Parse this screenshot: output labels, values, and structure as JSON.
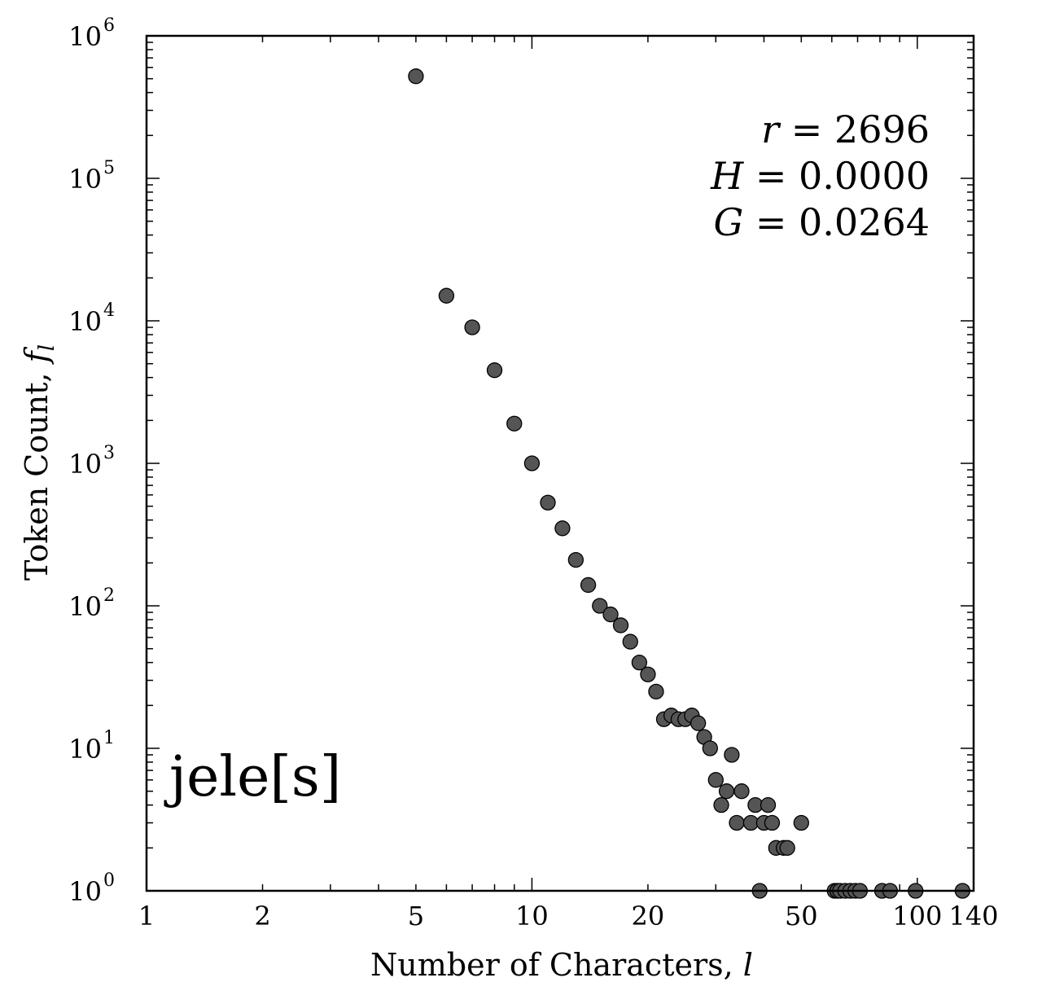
{
  "chart_data": {
    "type": "scatter",
    "xlabel": "Number of Characters,",
    "xlabel_var": "l",
    "ylabel": "Token Count,",
    "ylabel_var": "f",
    "ylabel_var_sub": "l",
    "x_scale": "log",
    "y_scale": "log",
    "xlim": [
      1,
      140
    ],
    "ylim": [
      1,
      1000000
    ],
    "x_ticks": [
      {
        "value": 1,
        "label": "1"
      },
      {
        "value": 2,
        "label": "2"
      },
      {
        "value": 5,
        "label": "5"
      },
      {
        "value": 10,
        "label": "10"
      },
      {
        "value": 20,
        "label": "20"
      },
      {
        "value": 50,
        "label": "50"
      },
      {
        "value": 100,
        "label": "100"
      },
      {
        "value": 140,
        "label": "140"
      }
    ],
    "y_ticks": [
      {
        "value": 1,
        "base": "10",
        "exp": "0"
      },
      {
        "value": 10,
        "base": "10",
        "exp": "1"
      },
      {
        "value": 100,
        "base": "10",
        "exp": "2"
      },
      {
        "value": 1000,
        "base": "10",
        "exp": "3"
      },
      {
        "value": 10000,
        "base": "10",
        "exp": "4"
      },
      {
        "value": 100000,
        "base": "10",
        "exp": "5"
      },
      {
        "value": 1000000,
        "base": "10",
        "exp": "6"
      }
    ],
    "grid": false,
    "marker_color": "#555555",
    "marker_edge": "#000000",
    "annotation_word": "jele[s]",
    "stats": [
      {
        "var": "r",
        "value": "= 2696"
      },
      {
        "var": "H",
        "value": "= 0.0000"
      },
      {
        "var": "G",
        "value": "= 0.0264"
      }
    ],
    "points": [
      [
        5,
        520000
      ],
      [
        6,
        15000
      ],
      [
        7,
        9000
      ],
      [
        8,
        4500
      ],
      [
        9,
        1900
      ],
      [
        10,
        1000
      ],
      [
        11,
        530
      ],
      [
        12,
        350
      ],
      [
        13,
        210
      ],
      [
        14,
        140
      ],
      [
        15,
        100
      ],
      [
        16,
        87
      ],
      [
        17,
        73
      ],
      [
        18,
        56
      ],
      [
        19,
        40
      ],
      [
        20,
        33
      ],
      [
        21,
        25
      ],
      [
        22,
        16
      ],
      [
        23,
        17
      ],
      [
        24,
        16
      ],
      [
        25,
        16
      ],
      [
        26,
        17
      ],
      [
        27,
        15
      ],
      [
        28,
        12
      ],
      [
        29,
        10
      ],
      [
        30,
        6
      ],
      [
        31,
        4
      ],
      [
        32,
        5
      ],
      [
        33,
        9
      ],
      [
        34,
        3
      ],
      [
        35,
        5
      ],
      [
        37,
        3
      ],
      [
        38,
        4
      ],
      [
        39,
        1
      ],
      [
        40,
        3
      ],
      [
        41,
        4
      ],
      [
        42,
        3
      ],
      [
        43,
        2
      ],
      [
        45,
        2
      ],
      [
        46,
        2
      ],
      [
        50,
        3
      ],
      [
        61,
        1
      ],
      [
        62,
        1
      ],
      [
        63,
        1
      ],
      [
        65,
        1
      ],
      [
        67,
        1
      ],
      [
        69,
        1
      ],
      [
        71,
        1
      ],
      [
        81,
        1
      ],
      [
        85,
        1
      ],
      [
        99,
        1
      ],
      [
        131,
        1
      ]
    ]
  }
}
